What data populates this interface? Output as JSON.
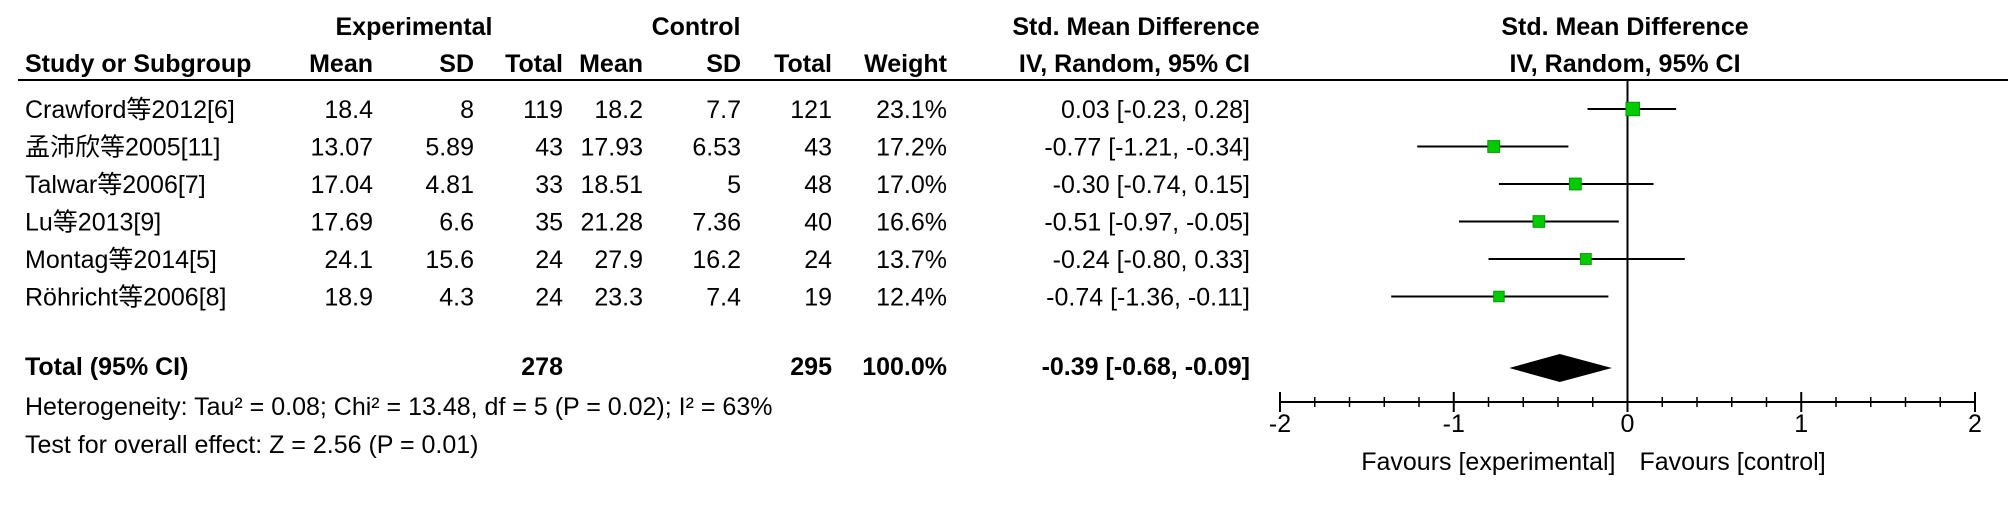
{
  "chart_data": {
    "type": "forest",
    "headers": {
      "experimental": "Experimental",
      "control": "Control",
      "smd": "Std. Mean Difference",
      "study_or_subgroup": "Study or Subgroup",
      "mean": "Mean",
      "sd": "SD",
      "total": "Total",
      "weight": "Weight",
      "method": "IV, Random, 95% CI",
      "plot_title": "Std. Mean Difference",
      "plot_method": "IV, Random, 95% CI"
    },
    "studies": [
      {
        "name": "Crawford等2012[6]",
        "exp_mean": "18.4",
        "exp_sd": "8",
        "exp_total": "119",
        "ctl_mean": "18.2",
        "ctl_sd": "7.7",
        "ctl_total": "121",
        "weight": "23.1%",
        "ci_text": "0.03 [-0.23, 0.28]",
        "est": 0.03,
        "lo": -0.23,
        "hi": 0.28,
        "weight_pct": 23.1
      },
      {
        "name": "孟沛欣等2005[11]",
        "exp_mean": "13.07",
        "exp_sd": "5.89",
        "exp_total": "43",
        "ctl_mean": "17.93",
        "ctl_sd": "6.53",
        "ctl_total": "43",
        "weight": "17.2%",
        "ci_text": "-0.77 [-1.21, -0.34]",
        "est": -0.77,
        "lo": -1.21,
        "hi": -0.34,
        "weight_pct": 17.2
      },
      {
        "name": "Talwar等2006[7]",
        "exp_mean": "17.04",
        "exp_sd": "4.81",
        "exp_total": "33",
        "ctl_mean": "18.51",
        "ctl_sd": "5",
        "ctl_total": "48",
        "weight": "17.0%",
        "ci_text": "-0.30 [-0.74, 0.15]",
        "est": -0.3,
        "lo": -0.74,
        "hi": 0.15,
        "weight_pct": 17.0
      },
      {
        "name": "Lu等2013[9]",
        "exp_mean": "17.69",
        "exp_sd": "6.6",
        "exp_total": "35",
        "ctl_mean": "21.28",
        "ctl_sd": "7.36",
        "ctl_total": "40",
        "weight": "16.6%",
        "ci_text": "-0.51 [-0.97, -0.05]",
        "est": -0.51,
        "lo": -0.97,
        "hi": -0.05,
        "weight_pct": 16.6
      },
      {
        "name": "Montag等2014[5]",
        "exp_mean": "24.1",
        "exp_sd": "15.6",
        "exp_total": "24",
        "ctl_mean": "27.9",
        "ctl_sd": "16.2",
        "ctl_total": "24",
        "weight": "13.7%",
        "ci_text": "-0.24 [-0.80, 0.33]",
        "est": -0.24,
        "lo": -0.8,
        "hi": 0.33,
        "weight_pct": 13.7
      },
      {
        "name": "Röhricht等2006[8]",
        "exp_mean": "18.9",
        "exp_sd": "4.3",
        "exp_total": "24",
        "ctl_mean": "23.3",
        "ctl_sd": "7.4",
        "ctl_total": "19",
        "weight": "12.4%",
        "ci_text": "-0.74 [-1.36, -0.11]",
        "est": -0.74,
        "lo": -1.36,
        "hi": -0.11,
        "weight_pct": 12.4
      }
    ],
    "total": {
      "label": "Total (95% CI)",
      "exp_total": "278",
      "ctl_total": "295",
      "weight": "100.0%",
      "ci_text": "-0.39 [-0.68, -0.09]",
      "est": -0.39,
      "lo": -0.68,
      "hi": -0.09
    },
    "heterogeneity": "Heterogeneity: Tau² = 0.08; Chi² = 13.48, df = 5 (P = 0.02); I² = 63%",
    "overall_effect": "Test for overall effect: Z = 2.56 (P = 0.01)",
    "axis": {
      "min": -2,
      "max": 2,
      "ticks": [
        -2,
        -1,
        0,
        1,
        2
      ],
      "tick_labels": [
        "-2",
        "-1",
        "0",
        "1",
        "2"
      ],
      "favours_left": "Favours [experimental]",
      "favours_right": "Favours [control]"
    },
    "colors": {
      "marker": "#00cc00",
      "marker_edge": "#009900",
      "diamond": "#000000",
      "line": "#000000"
    }
  }
}
